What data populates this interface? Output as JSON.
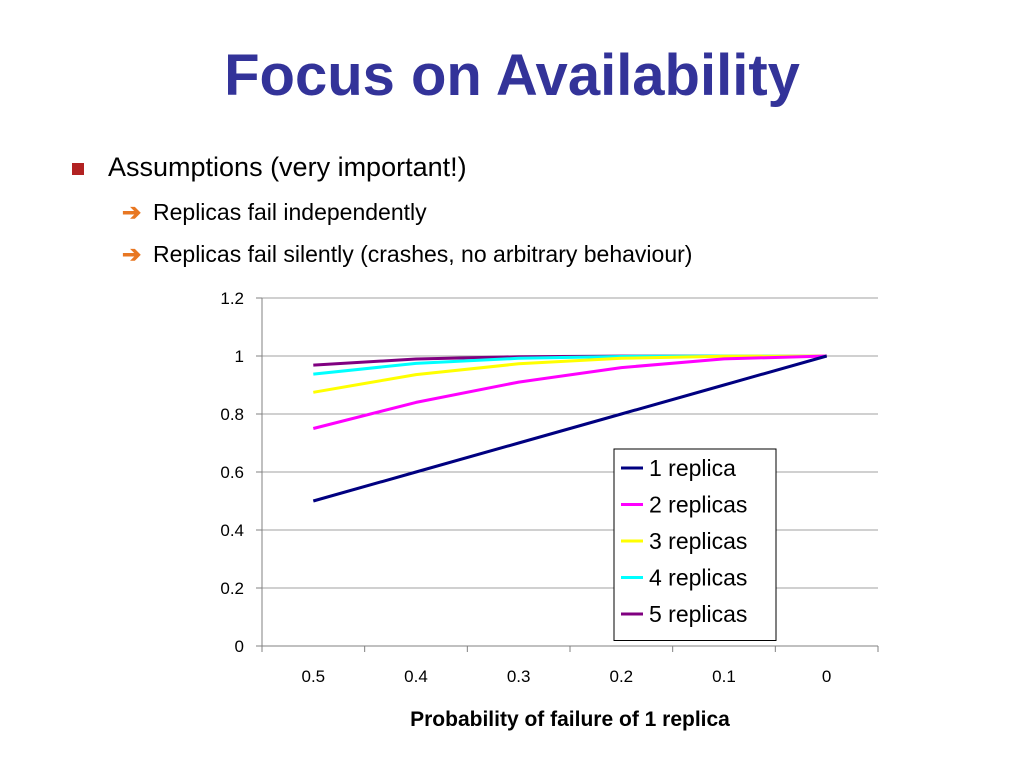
{
  "slide": {
    "title": "Focus on Availability",
    "bullets": [
      {
        "text": "Assumptions (very important!)",
        "level": 1
      },
      {
        "text": "Replicas fail independently",
        "level": 2
      },
      {
        "text": "Replicas fail silently (crashes, no arbitrary behaviour)",
        "level": 2
      }
    ]
  },
  "colors": {
    "title": "#333399",
    "bullet_square": "#b22222",
    "arrow": "#e87722"
  },
  "chart_data": {
    "type": "line",
    "title": "",
    "xlabel": "Probability of failure of 1 replica",
    "ylabel": "",
    "categories": [
      "0.5",
      "0.4",
      "0.3",
      "0.2",
      "0.1",
      "0"
    ],
    "yticks": [
      "0",
      "0.2",
      "0.4",
      "0.6",
      "0.8",
      "1",
      "1.2"
    ],
    "ylim": [
      0,
      1.2
    ],
    "grid": "horizontal",
    "legend_position": "bottom-right inside",
    "series": [
      {
        "name": "1 replica",
        "color": "#000080",
        "values": [
          0.5,
          0.6,
          0.7,
          0.8,
          0.9,
          1.0
        ]
      },
      {
        "name": "2 replicas",
        "color": "#ff00ff",
        "values": [
          0.75,
          0.84,
          0.91,
          0.96,
          0.99,
          1.0
        ]
      },
      {
        "name": "3 replicas",
        "color": "#ffff00",
        "values": [
          0.875,
          0.936,
          0.973,
          0.992,
          0.999,
          1.0
        ]
      },
      {
        "name": "4 replicas",
        "color": "#00ffff",
        "values": [
          0.9375,
          0.9744,
          0.9919,
          0.9984,
          0.9999,
          1.0
        ]
      },
      {
        "name": "5 replicas",
        "color": "#800080",
        "values": [
          0.96875,
          0.98976,
          0.99757,
          0.99968,
          0.99999,
          1.0
        ]
      }
    ]
  }
}
